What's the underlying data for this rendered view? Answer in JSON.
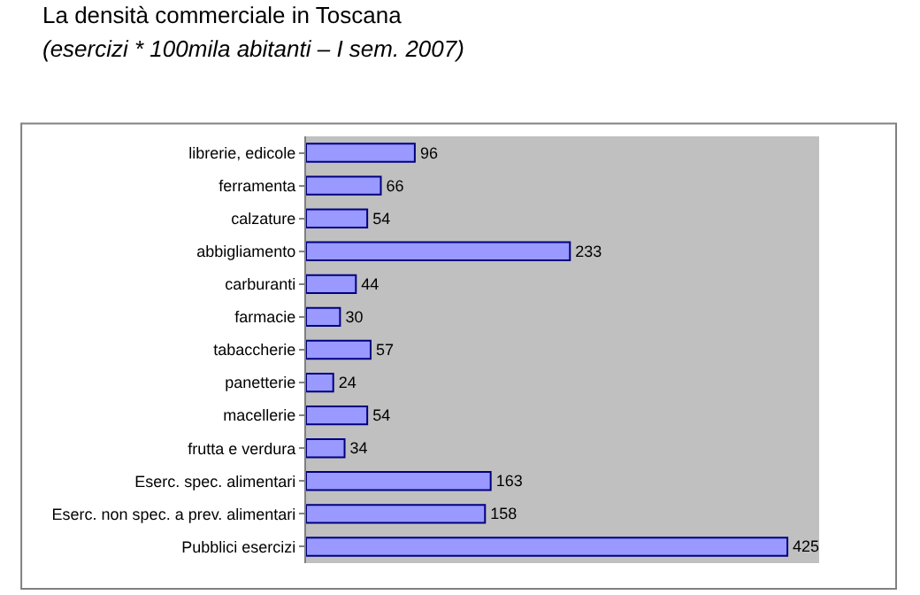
{
  "chart_data": {
    "type": "bar",
    "orientation": "horizontal",
    "title": "La densità commerciale in Toscana",
    "subtitle": "(esercizi * 100mila abitanti – I sem. 2007)",
    "categories": [
      "librerie, edicole",
      "ferramenta",
      "calzature",
      "abbigliamento",
      "carburanti",
      "farmacie",
      "tabaccherie",
      "panetterie",
      "macellerie",
      "frutta e verdura",
      "Eserc. spec. alimentari",
      "Eserc. non spec. a prev. alimentari",
      "Pubblici esercizi"
    ],
    "values": [
      96,
      66,
      54,
      233,
      44,
      30,
      57,
      24,
      54,
      34,
      163,
      158,
      425
    ],
    "color": "#9999ff",
    "data_labels": true,
    "legend": false,
    "grid": false,
    "tick_labels": "y"
  }
}
